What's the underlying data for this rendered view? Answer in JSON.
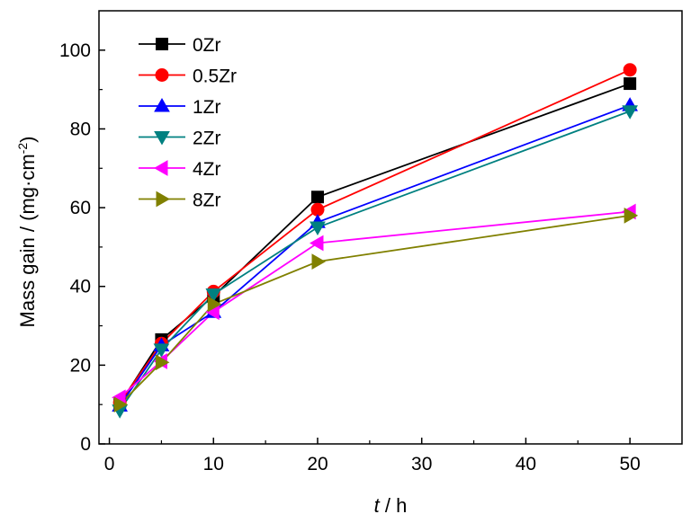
{
  "chart_data": {
    "type": "line",
    "x_axis": {
      "label_italic": "t",
      "label_rest": " / h",
      "range": [
        -1,
        55
      ],
      "ticks": [
        0,
        10,
        20,
        30,
        40,
        50
      ],
      "tick_labels": [
        "0",
        "10",
        "20",
        "30",
        "40",
        "50"
      ]
    },
    "y_axis": {
      "label_main": "Mass gain / (mg·cm",
      "label_sup": "-2",
      "label_end": ")",
      "range": [
        0,
        110
      ],
      "ticks": [
        0,
        20,
        40,
        60,
        80,
        100
      ],
      "tick_labels": [
        "0",
        "20",
        "40",
        "60",
        "80",
        "100"
      ]
    },
    "grid": false,
    "legend_position": "top-left",
    "series": [
      {
        "name": "0Zr",
        "color": "#000000",
        "marker": "square",
        "x": [
          1,
          5,
          10,
          20,
          50
        ],
        "y": [
          10.2,
          26.5,
          37.5,
          62.7,
          91.5
        ]
      },
      {
        "name": "0.5Zr",
        "color": "#ff0000",
        "marker": "circle",
        "x": [
          1,
          5,
          10,
          20,
          50
        ],
        "y": [
          10.5,
          25.5,
          38.7,
          59.5,
          95.0
        ]
      },
      {
        "name": "1Zr",
        "color": "#0000ff",
        "marker": "triangle-up",
        "x": [
          1,
          5,
          10,
          20,
          50
        ],
        "y": [
          9.7,
          25.0,
          33.5,
          56.3,
          86.0
        ]
      },
      {
        "name": "2Zr",
        "color": "#008080",
        "marker": "triangle-down",
        "x": [
          1,
          5,
          10,
          20,
          50
        ],
        "y": [
          8.5,
          24.0,
          38.0,
          55.0,
          84.5
        ]
      },
      {
        "name": "4Zr",
        "color": "#ff00ff",
        "marker": "triangle-left",
        "x": [
          1,
          5,
          10,
          20,
          50
        ],
        "y": [
          11.8,
          21.0,
          33.5,
          51.0,
          59.0
        ]
      },
      {
        "name": "8Zr",
        "color": "#808000",
        "marker": "triangle-right",
        "x": [
          1,
          5,
          10,
          20,
          50
        ],
        "y": [
          10.0,
          20.7,
          35.5,
          46.3,
          58.0
        ]
      }
    ]
  }
}
